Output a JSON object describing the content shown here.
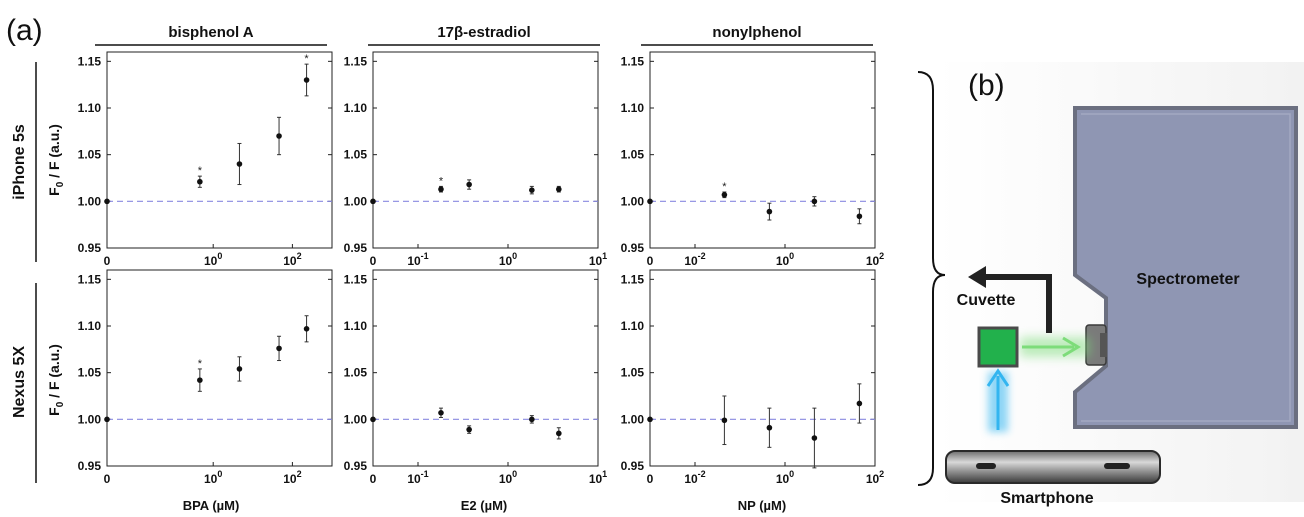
{
  "panel_labels": {
    "a": "(a)",
    "b": "(b)"
  },
  "chart_data": {
    "type": "scatter",
    "ylim": [
      0.95,
      1.16
    ],
    "yticks": [
      "0.95",
      "1.00",
      "1.05",
      "1.10",
      "1.15"
    ],
    "baseline": 1.0,
    "ylabel": "F0 / F (a.u.)",
    "compounds": [
      {
        "title": "bisphenol A",
        "xlabel": "BPA (µM)",
        "xticks": [
          {
            "exp": "0",
            "zero": true
          },
          {
            "base": "10",
            "exp": "0"
          },
          {
            "base": "10",
            "exp": "2"
          }
        ]
      },
      {
        "title": "17β-estradiol",
        "xlabel": "E2 (µM)",
        "xticks": [
          {
            "exp": "0",
            "zero": true
          },
          {
            "base": "10",
            "exp": "-1"
          },
          {
            "base": "10",
            "exp": "0"
          },
          {
            "base": "10",
            "exp": "1"
          }
        ]
      },
      {
        "title": "nonylphenol",
        "xlabel": "NP (µM)",
        "xticks": [
          {
            "exp": "0",
            "zero": true
          },
          {
            "base": "10",
            "exp": "-2"
          },
          {
            "base": "10",
            "exp": "0"
          },
          {
            "base": "10",
            "exp": "2"
          }
        ]
      }
    ],
    "devices": [
      "iPhone 5s",
      "Nexus 5X"
    ],
    "panels": [
      {
        "device": "iPhone 5s",
        "compound": "bisphenol A",
        "points": [
          {
            "x": 0,
            "y": 1.0,
            "err": 0,
            "sig": false
          },
          {
            "x": 0.46,
            "y": 1.021,
            "err": 0.006,
            "sig": true
          },
          {
            "x": 4.6,
            "y": 1.04,
            "err": 0.022,
            "sig": false
          },
          {
            "x": 46,
            "y": 1.07,
            "err": 0.02,
            "sig": false
          },
          {
            "x": 228,
            "y": 1.13,
            "err": 0.017,
            "sig": true
          }
        ]
      },
      {
        "device": "iPhone 5s",
        "compound": "17β-estradiol",
        "points": [
          {
            "x": 0,
            "y": 1.0,
            "err": 0,
            "sig": false
          },
          {
            "x": 0.18,
            "y": 1.013,
            "err": 0.003,
            "sig": true
          },
          {
            "x": 0.37,
            "y": 1.018,
            "err": 0.005,
            "sig": false
          },
          {
            "x": 1.84,
            "y": 1.012,
            "err": 0.004,
            "sig": false
          },
          {
            "x": 3.67,
            "y": 1.013,
            "err": 0.003,
            "sig": false
          }
        ]
      },
      {
        "device": "iPhone 5s",
        "compound": "nonylphenol",
        "points": [
          {
            "x": 0,
            "y": 1.0,
            "err": 0,
            "sig": false
          },
          {
            "x": 0.045,
            "y": 1.007,
            "err": 0.003,
            "sig": true
          },
          {
            "x": 0.45,
            "y": 0.989,
            "err": 0.009,
            "sig": false
          },
          {
            "x": 4.5,
            "y": 1.0,
            "err": 0.005,
            "sig": false
          },
          {
            "x": 45,
            "y": 0.984,
            "err": 0.008,
            "sig": false
          }
        ]
      },
      {
        "device": "Nexus 5X",
        "compound": "bisphenol A",
        "points": [
          {
            "x": 0,
            "y": 1.0,
            "err": 0,
            "sig": false
          },
          {
            "x": 0.46,
            "y": 1.042,
            "err": 0.012,
            "sig": true
          },
          {
            "x": 4.6,
            "y": 1.054,
            "err": 0.013,
            "sig": false
          },
          {
            "x": 46,
            "y": 1.076,
            "err": 0.013,
            "sig": false
          },
          {
            "x": 228,
            "y": 1.097,
            "err": 0.014,
            "sig": false
          }
        ]
      },
      {
        "device": "Nexus 5X",
        "compound": "17β-estradiol",
        "points": [
          {
            "x": 0,
            "y": 1.0,
            "err": 0,
            "sig": false
          },
          {
            "x": 0.18,
            "y": 1.007,
            "err": 0.005,
            "sig": false
          },
          {
            "x": 0.37,
            "y": 0.989,
            "err": 0.004,
            "sig": false
          },
          {
            "x": 1.84,
            "y": 1.0,
            "err": 0.004,
            "sig": false
          },
          {
            "x": 3.67,
            "y": 0.985,
            "err": 0.006,
            "sig": false
          }
        ]
      },
      {
        "device": "Nexus 5X",
        "compound": "nonylphenol",
        "points": [
          {
            "x": 0,
            "y": 1.0,
            "err": 0,
            "sig": false
          },
          {
            "x": 0.045,
            "y": 0.999,
            "err": 0.026,
            "sig": false
          },
          {
            "x": 0.45,
            "y": 0.991,
            "err": 0.021,
            "sig": false
          },
          {
            "x": 4.5,
            "y": 0.98,
            "err": 0.032,
            "sig": false
          },
          {
            "x": 45,
            "y": 1.017,
            "err": 0.021,
            "sig": false
          }
        ]
      }
    ]
  },
  "diagram": {
    "spectrometer_label": "Spectrometer",
    "cuvette_label": "Cuvette",
    "smartphone_label": "Smartphone",
    "colors": {
      "spectrometer": "#8f96b3",
      "cuvette": "#22b14c",
      "green_light": "#7ddc7a",
      "blue_light": "#33b5f0",
      "arrow": "#222222"
    }
  }
}
